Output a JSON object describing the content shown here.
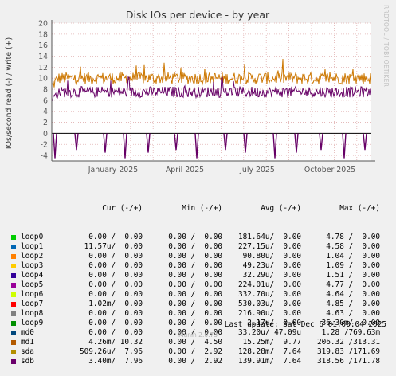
{
  "chart_data": {
    "type": "line",
    "title": "Disk IOs per device - by year",
    "ylabel": "IOs/second read (-) / write (+)",
    "ylim": [
      -5,
      20
    ],
    "yticks": [
      20,
      18,
      16,
      14,
      12,
      10,
      8,
      6,
      4,
      2,
      0,
      -2,
      -4
    ],
    "xticks": [
      "January 2025",
      "April 2025",
      "July 2025",
      "October 2025"
    ],
    "grid": true,
    "series": [
      {
        "name": "sda",
        "color": "#cc7700",
        "direction": "write",
        "typical": 10,
        "range": [
          8,
          13.5
        ]
      },
      {
        "name": "sdb",
        "color": "#660066",
        "direction": "write",
        "typical": 7.5,
        "range": [
          6,
          12.5
        ]
      },
      {
        "name": "sdb",
        "color": "#660066",
        "direction": "read",
        "typical": 0,
        "spikes_to": -4.5
      }
    ]
  },
  "legend": {
    "headers": {
      "cur": "Cur (-/+)",
      "min": "Min (-/+)",
      "avg": "Avg (-/+)",
      "max": "Max (-/+)"
    },
    "rows": [
      {
        "name": "loop0",
        "color": "#00cc00",
        "cur": "0.00 /  0.00",
        "min": "0.00 /  0.00",
        "avg": "181.64u/  0.00",
        "max": "4.78 /  0.00"
      },
      {
        "name": "loop1",
        "color": "#0066b3",
        "cur": "11.57u/  0.00",
        "min": "0.00 /  0.00",
        "avg": "227.15u/  0.00",
        "max": "4.58 /  0.00"
      },
      {
        "name": "loop2",
        "color": "#ff8000",
        "cur": "0.00 /  0.00",
        "min": "0.00 /  0.00",
        "avg": "90.80u/  0.00",
        "max": "1.04 /  0.00"
      },
      {
        "name": "loop3",
        "color": "#ffcc00",
        "cur": "0.00 /  0.00",
        "min": "0.00 /  0.00",
        "avg": "49.23u/  0.00",
        "max": "1.09 /  0.00"
      },
      {
        "name": "loop4",
        "color": "#330099",
        "cur": "0.00 /  0.00",
        "min": "0.00 /  0.00",
        "avg": "32.29u/  0.00",
        "max": "1.51 /  0.00"
      },
      {
        "name": "loop5",
        "color": "#990099",
        "cur": "0.00 /  0.00",
        "min": "0.00 /  0.00",
        "avg": "224.01u/  0.00",
        "max": "4.77 /  0.00"
      },
      {
        "name": "loop6",
        "color": "#ccff00",
        "cur": "0.00 /  0.00",
        "min": "0.00 /  0.00",
        "avg": "332.70u/  0.00",
        "max": "4.64 /  0.00"
      },
      {
        "name": "loop7",
        "color": "#ff0000",
        "cur": "1.02m/  0.00",
        "min": "0.00 /  0.00",
        "avg": "530.03u/  0.00",
        "max": "4.85 /  0.00"
      },
      {
        "name": "loop8",
        "color": "#808080",
        "cur": "0.00 /  0.00",
        "min": "0.00 /  0.00",
        "avg": "216.90u/  0.00",
        "max": "4.63 /  0.00"
      },
      {
        "name": "loop9",
        "color": "#008f00",
        "cur": "0.00 /  0.00",
        "min": "0.00 /  0.00",
        "avg": "2.17u/  0.00",
        "max": "36.30m/  0.00"
      },
      {
        "name": "md0",
        "color": "#00487d",
        "cur": "0.00 /  0.00",
        "min": "0.00 /  0.00",
        "avg": "33.20u/ 47.09u",
        "max": "1.28 /769.63m"
      },
      {
        "name": "md1",
        "color": "#b35a00",
        "cur": "4.26m/ 10.32",
        "min": "0.00 /  4.50",
        "avg": "15.25m/  9.77",
        "max": "206.32 /313.31"
      },
      {
        "name": "sda",
        "color": "#b38f00",
        "cur": "509.26u/  7.96",
        "min": "0.00 /  2.92",
        "avg": "128.28m/  7.64",
        "max": "319.83 /171.69"
      },
      {
        "name": "sdb",
        "color": "#6b006b",
        "cur": "3.40m/  7.96",
        "min": "0.00 /  2.92",
        "avg": "139.91m/  7.64",
        "max": "318.56 /171.78"
      }
    ]
  },
  "footer": {
    "last_update": "Last update: Sat Dec  6 01:00:04 2025",
    "version": "Munin 2.0.73"
  },
  "watermark": "RRDTOOL / TOBI OETIKER"
}
